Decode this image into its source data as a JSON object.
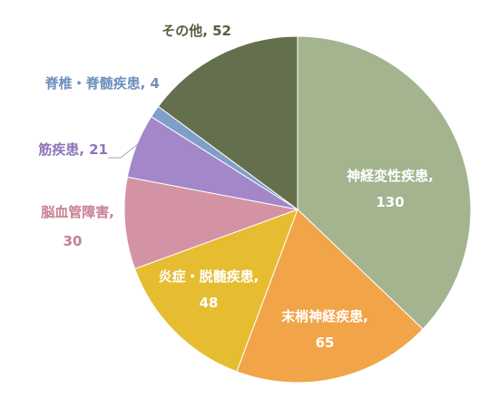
{
  "chart_data": {
    "type": "pie",
    "start": "12 o'clock",
    "direction": "clockwise",
    "legend": "none",
    "label_separator": ", ",
    "slices": [
      {
        "label": "神経変性疾患",
        "value": 130,
        "color": "#a3b48f",
        "label_color": "#ffffff"
      },
      {
        "label": "末梢神経疾患",
        "value": 65,
        "color": "#f2a448",
        "label_color": "#ffffff"
      },
      {
        "label": "炎症・脱髄疾患",
        "value": 48,
        "color": "#e6bd31",
        "label_color": "#ffffff"
      },
      {
        "label": "脳血管障害",
        "value": 30,
        "color": "#d493a4",
        "label_color": "#c97f92"
      },
      {
        "label": "筋疾患",
        "value": 21,
        "color": "#a387c9",
        "label_color": "#8f75b9"
      },
      {
        "label": "脊椎・脊髄疾患",
        "value": 4,
        "color": "#7f9fc9",
        "label_color": "#6f8fbd"
      },
      {
        "label": "その他",
        "value": 52,
        "color": "#64704d",
        "label_color": "#55603f"
      }
    ]
  }
}
